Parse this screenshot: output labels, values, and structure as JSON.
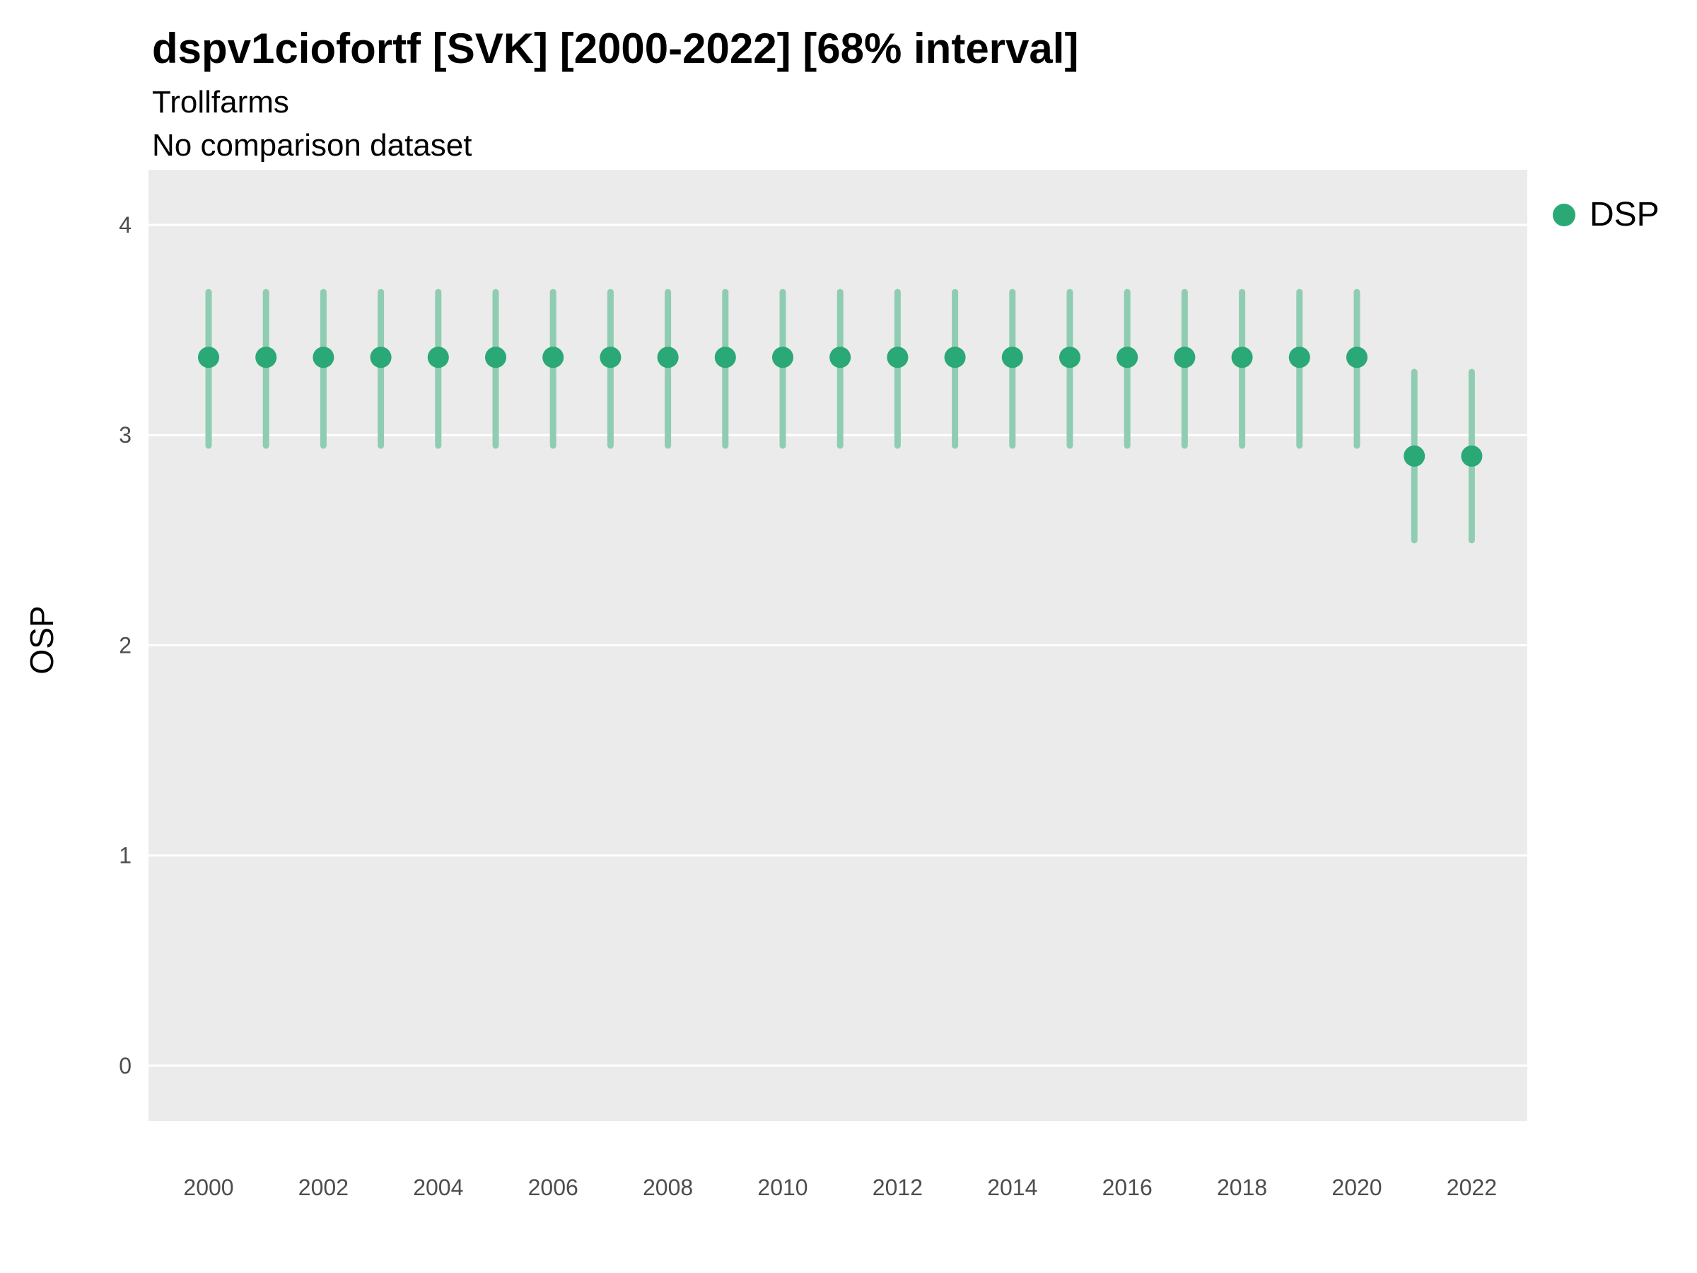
{
  "header": {
    "title": "dspv1ciofortf [SVK] [2000-2022] [68% interval]",
    "subtitle": "Trollfarms",
    "note": "No comparison dataset"
  },
  "legend": {
    "items": [
      {
        "label": "DSP",
        "color": "#2AA876"
      }
    ]
  },
  "chart_data": {
    "type": "scatter",
    "title": "dspv1ciofortf [SVK] [2000-2022] [68% interval]",
    "subtitle": "Trollfarms",
    "note": "No comparison dataset",
    "interval": "68%",
    "xlabel": "",
    "ylabel": "OSP",
    "ylim": [
      -0.26,
      4.26
    ],
    "yticks": [
      0,
      1,
      2,
      3,
      4
    ],
    "xticks": [
      2000,
      2002,
      2004,
      2006,
      2008,
      2010,
      2012,
      2014,
      2016,
      2018,
      2020,
      2022
    ],
    "legend_position": "right",
    "grid": "horizontal-major",
    "panel_bg": "#EBEBEB",
    "grid_color": "#FFFFFF",
    "tick_label_color": "#4D4D4D",
    "point_color": "#2AA876",
    "interval_color": "#8FCDB2",
    "series": [
      {
        "name": "DSP",
        "x": [
          2000,
          2001,
          2002,
          2003,
          2004,
          2005,
          2006,
          2007,
          2008,
          2009,
          2010,
          2011,
          2012,
          2013,
          2014,
          2015,
          2016,
          2017,
          2018,
          2019,
          2020,
          2021,
          2022
        ],
        "y": [
          3.37,
          3.37,
          3.37,
          3.37,
          3.37,
          3.37,
          3.37,
          3.37,
          3.37,
          3.37,
          3.37,
          3.37,
          3.37,
          3.37,
          3.37,
          3.37,
          3.37,
          3.37,
          3.37,
          3.37,
          3.37,
          2.9,
          2.9
        ],
        "lower": [
          2.95,
          2.95,
          2.95,
          2.95,
          2.95,
          2.95,
          2.95,
          2.95,
          2.95,
          2.95,
          2.95,
          2.95,
          2.95,
          2.95,
          2.95,
          2.95,
          2.95,
          2.95,
          2.95,
          2.95,
          2.95,
          2.5,
          2.5
        ],
        "upper": [
          3.68,
          3.68,
          3.68,
          3.68,
          3.68,
          3.68,
          3.68,
          3.68,
          3.68,
          3.68,
          3.68,
          3.68,
          3.68,
          3.68,
          3.68,
          3.68,
          3.68,
          3.68,
          3.68,
          3.68,
          3.68,
          3.3,
          3.3
        ]
      }
    ]
  }
}
